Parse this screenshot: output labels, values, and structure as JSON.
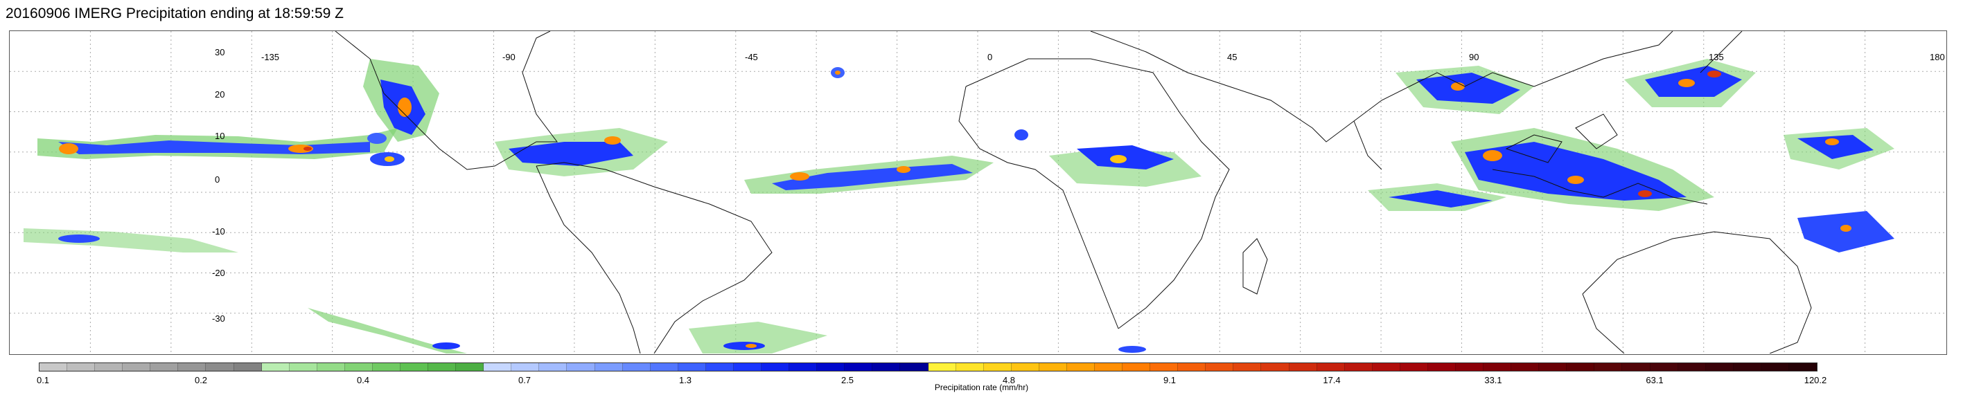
{
  "title": "20160906 IMERG Precipitation ending at 18:59:59 Z",
  "map": {
    "projection": "equirectangular",
    "lat_range": [
      -40,
      40
    ],
    "lon_range": [
      -180,
      180
    ],
    "lon_labels": [
      "-135",
      "-90",
      "-45",
      "0",
      "45",
      "90",
      "135",
      "180"
    ],
    "lat_labels": [
      "30",
      "20",
      "10",
      "0",
      "-10",
      "-20",
      "-30"
    ],
    "grid": "dotted gray",
    "land_outline_color": "#000000"
  },
  "colorbar": {
    "title": "Precipitation rate (mm/hr)",
    "tick_labels": [
      "0.1",
      "0.2",
      "0.4",
      "0.7",
      "1.3",
      "2.5",
      "4.8",
      "9.1",
      "17.4",
      "33.1",
      "63.1",
      "120.2"
    ],
    "colors": [
      "#c8c8c8",
      "#bebebe",
      "#b4b4b4",
      "#aaaaaa",
      "#a0a0a0",
      "#969696",
      "#8c8c8c",
      "#828282",
      "#b9edb1",
      "#a6e59c",
      "#94dc88",
      "#82d375",
      "#70ca63",
      "#5ec152",
      "#55b84a",
      "#4cae43",
      "#c6d7ff",
      "#b4c9ff",
      "#a2bbff",
      "#8fabff",
      "#7b9cff",
      "#6689ff",
      "#5276ff",
      "#3d62ff",
      "#2a4bff",
      "#1a36ff",
      "#0d22f0",
      "#0514df",
      "#0008cc",
      "#0000bb",
      "#0000a8",
      "#000096",
      "#fff23a",
      "#ffe42a",
      "#ffd41c",
      "#ffc412",
      "#ffb30a",
      "#ffa106",
      "#ff8f04",
      "#ff7d03",
      "#fb6d08",
      "#f45f0a",
      "#ec520c",
      "#e3450d",
      "#da380e",
      "#d02c0e",
      "#c6210d",
      "#bb170c",
      "#b00d0b",
      "#a4060a",
      "#980009",
      "#8c0008",
      "#800007",
      "#740006",
      "#690005",
      "#5e0004",
      "#5a0608",
      "#520509",
      "#4a040a",
      "#42030a",
      "#3a0209",
      "#330208",
      "#2c0107",
      "#250106"
    ]
  }
}
